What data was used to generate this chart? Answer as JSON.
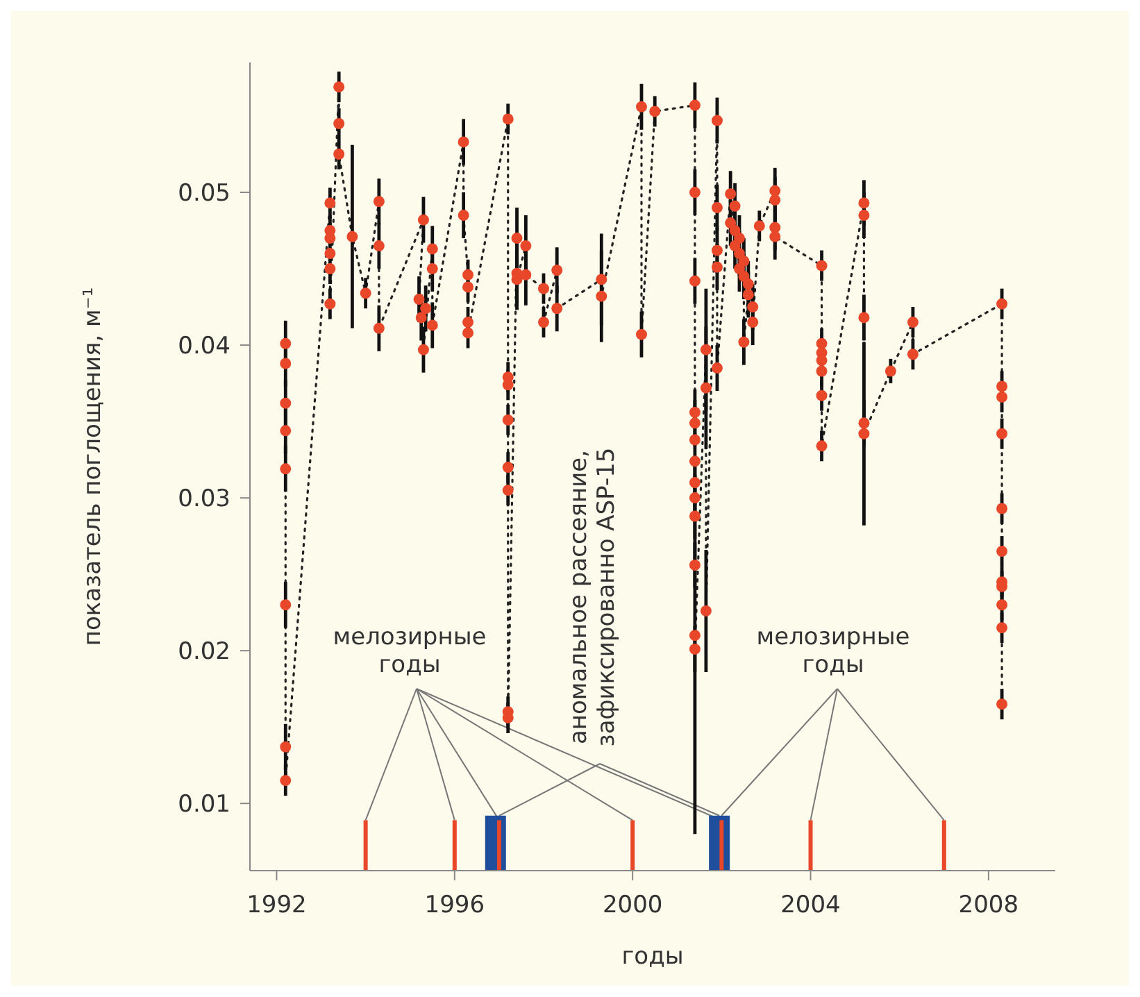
{
  "chart_data": {
    "type": "line",
    "xlabel": "годы",
    "ylabel": "показатель поглощения, м⁻¹",
    "xlim": [
      1991.4,
      2009.5
    ],
    "xticks": [
      1992,
      1996,
      2000,
      2004,
      2008
    ],
    "ylim": [
      0.0056,
      0.0585
    ],
    "yticks": [
      0.01,
      0.02,
      0.03,
      0.04,
      0.05
    ],
    "marker": "circle",
    "line_style": "dotted",
    "series": [
      {
        "color": "#e8472a",
        "x": [
          1992.2,
          1992.2,
          1992.2,
          1992.2,
          1992.2,
          1992.2,
          1992.2,
          1992.2,
          1993.2,
          1993.2,
          1993.2,
          1993.2,
          1993.2,
          1993.2,
          1993.4,
          1993.4,
          1993.4,
          1993.7,
          1994.0,
          1994.3,
          1994.3,
          1994.3,
          1995.3,
          1995.2,
          1995.35,
          1995.25,
          1995.3,
          1995.5,
          1995.5,
          1995.5,
          1996.2,
          1996.2,
          1996.3,
          1996.3,
          1996.3,
          1996.3,
          1997.2,
          1997.2,
          1997.2,
          1997.2,
          1997.2,
          1997.2,
          1997.2,
          1997.2,
          1997.4,
          1997.4,
          1997.4,
          1997.6,
          1997.6,
          1998.0,
          1998.0,
          1998.3,
          1998.3,
          1999.3,
          1999.3,
          2000.2,
          2000.2,
          2000.5,
          2001.4,
          2001.4,
          2001.4,
          2001.4,
          2001.4,
          2001.4,
          2001.4,
          2001.4,
          2001.4,
          2001.4,
          2001.4,
          2001.4,
          2001.4,
          2001.65,
          2001.65,
          2001.65,
          2001.9,
          2001.9,
          2001.9,
          2001.9,
          2001.9,
          2002.2,
          2002.2,
          2002.3,
          2002.3,
          2002.3,
          2002.4,
          2002.4,
          2002.4,
          2002.5,
          2002.5,
          2002.5,
          2002.6,
          2002.6,
          2002.7,
          2002.7,
          2002.85,
          2003.2,
          2003.2,
          2003.2,
          2003.2,
          2004.25,
          2004.25,
          2004.25,
          2004.25,
          2004.25,
          2004.25,
          2004.25,
          2005.2,
          2005.2,
          2005.2,
          2005.2,
          2005.2,
          2005.8,
          2006.3,
          2006.3,
          2008.3,
          2008.3,
          2008.3,
          2008.3,
          2008.3,
          2008.3,
          2008.3,
          2008.3,
          2008.3,
          2008.3,
          2008.3
        ],
        "values": [
          0.0401,
          0.0388,
          0.0362,
          0.0344,
          0.0319,
          0.023,
          0.0137,
          0.0115,
          0.0493,
          0.0475,
          0.047,
          0.046,
          0.045,
          0.0427,
          0.0569,
          0.0545,
          0.0525,
          0.0471,
          0.0434,
          0.0494,
          0.0465,
          0.0411,
          0.0482,
          0.043,
          0.0424,
          0.0418,
          0.0397,
          0.0463,
          0.045,
          0.0413,
          0.0533,
          0.0485,
          0.0446,
          0.0438,
          0.0415,
          0.0408,
          0.0548,
          0.0379,
          0.0374,
          0.0351,
          0.032,
          0.0305,
          0.016,
          0.0156,
          0.047,
          0.0447,
          0.0443,
          0.0465,
          0.0446,
          0.0437,
          0.0415,
          0.0449,
          0.0424,
          0.0443,
          0.0432,
          0.0556,
          0.0407,
          0.0553,
          0.0557,
          0.05,
          0.0442,
          0.0356,
          0.0349,
          0.0338,
          0.0324,
          0.031,
          0.03,
          0.0288,
          0.0256,
          0.021,
          0.0201,
          0.0397,
          0.0372,
          0.0226,
          0.0547,
          0.049,
          0.0462,
          0.0451,
          0.0385,
          0.0499,
          0.048,
          0.0491,
          0.0475,
          0.0465,
          0.047,
          0.046,
          0.045,
          0.0455,
          0.0445,
          0.0402,
          0.0433,
          0.044,
          0.0425,
          0.0415,
          0.0478,
          0.0501,
          0.0495,
          0.0477,
          0.0471,
          0.0452,
          0.0401,
          0.0395,
          0.039,
          0.0383,
          0.0367,
          0.0334,
          0.0493,
          0.0485,
          0.0418,
          0.0349,
          0.0342,
          0.0383,
          0.0415,
          0.0394,
          0.0427,
          0.0373,
          0.0366,
          0.0342,
          0.0293,
          0.0265,
          0.0245,
          0.0242,
          0.023,
          0.0215,
          0.0165
        ],
        "errors": [
          0.0015,
          0.0015,
          0.0015,
          0.0015,
          0.0015,
          0.0015,
          0.0015,
          0.001,
          0.001,
          0.001,
          0.001,
          null,
          0.001,
          0.001,
          0.001,
          0.001,
          0.001,
          0.006,
          0.001,
          0.0015,
          0.0015,
          0.0015,
          0.0015,
          0.0015,
          0.0015,
          0.0015,
          0.0015,
          0.0015,
          0.0015,
          0.0015,
          0.0015,
          0.0015,
          0.001,
          0.001,
          0.001,
          0.001,
          0.001,
          0.001,
          0.001,
          0.001,
          0.001,
          0.001,
          0.001,
          0.001,
          0.002,
          0.002,
          0.002,
          0.002,
          0.002,
          0.001,
          0.001,
          0.0015,
          0.0015,
          0.003,
          0.003,
          0.0015,
          0.0015,
          0.001,
          0.0015,
          0.0015,
          0.0015,
          0.0015,
          0.0015,
          null,
          null,
          0.0015,
          0.0015,
          0.0015,
          0.0015,
          0.013,
          0.0015,
          0.004,
          0.004,
          0.004,
          0.0015,
          0.0015,
          0.0015,
          0.0015,
          0.0015,
          0.0015,
          0.0015,
          0.0015,
          0.0015,
          0.0015,
          0.0015,
          0.0015,
          0.0015,
          0.0015,
          0.0015,
          0.0015,
          0.0015,
          0.0015,
          0.0015,
          0.0015,
          0.001,
          0.0015,
          0.0015,
          0.0015,
          0.0015,
          0.001,
          0.001,
          0.001,
          0.001,
          0.001,
          0.001,
          0.001,
          0.0015,
          0.0015,
          0.0015,
          0.0015,
          0.006,
          0.0008,
          0.001,
          0.001,
          0.001,
          0.001,
          0.001,
          0.001,
          0.001,
          0.001,
          0.001,
          0.001,
          0.001,
          0.001,
          0.001
        ]
      },
      {
        "type": "bar",
        "color": "#1f4e9c",
        "x": [
          1996.92,
          2001.95
        ],
        "base": [
          0.0056,
          0.0056
        ],
        "values": [
          0.0036,
          0.0036
        ]
      },
      {
        "type": "bar",
        "color": "#e8472a",
        "x": [
          1994,
          1996,
          1997,
          2000,
          2002,
          2004,
          2007
        ],
        "base": [
          0.0056,
          0.0056,
          0.0056,
          0.0056,
          0.0056,
          0.0056,
          0.0056
        ],
        "values": [
          0.0033,
          0.0033,
          0.0033,
          0.0033,
          0.0033,
          0.0033,
          0.0033
        ]
      }
    ],
    "annotations": [
      {
        "text": "мелозирные\nгоды",
        "x": 1994,
        "y": 0.0089
      },
      {
        "text": "мелозирные\nгоды",
        "x": 2002,
        "y": 0.0092
      },
      {
        "text": "аномальное рассеяние,\nзафиксированно ASP-15",
        "x": 1997,
        "y": 0.0092
      }
    ]
  }
}
